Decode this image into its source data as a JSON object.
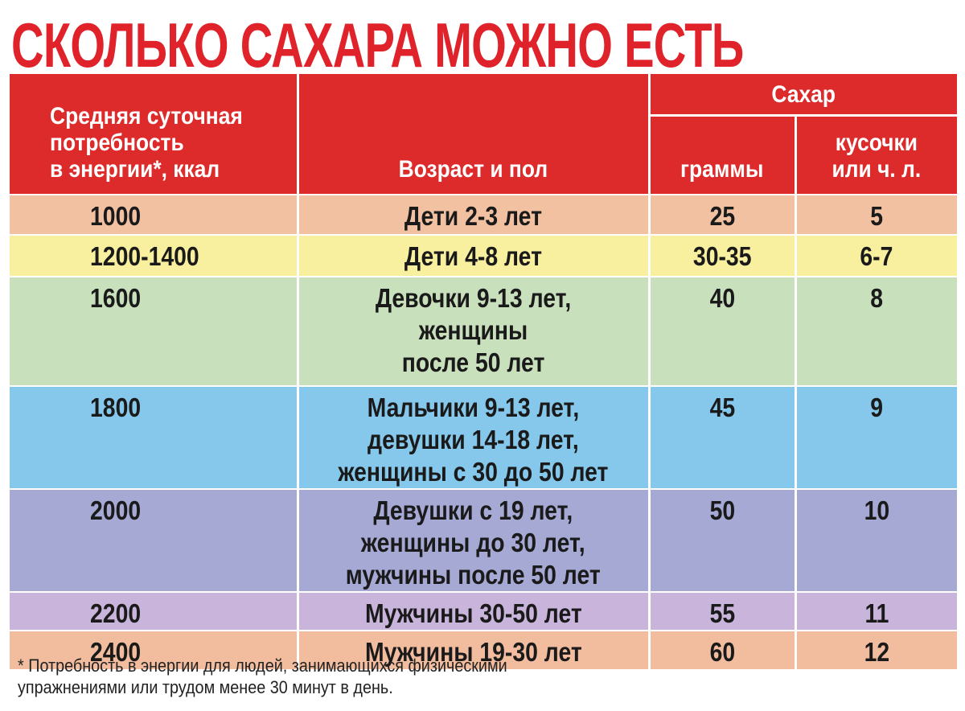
{
  "title": "СКОЛЬКО САХАРА МОЖНО ЕСТЬ",
  "header": {
    "energy": "Средняя суточная\nпотребность\nв энергии*, ккал",
    "age": "Возраст и пол",
    "sugar": "Сахар",
    "grams": "граммы",
    "pieces": "кусочки\nили ч. л."
  },
  "rows": [
    {
      "energy": "1000",
      "age": "Дети 2-3 лет",
      "grams": "25",
      "pieces": "5",
      "color": "#f2c1a2"
    },
    {
      "energy": "1200-1400",
      "age": "Дети 4-8 лет",
      "grams": "30-35",
      "pieces": "6-7",
      "color": "#f8ef9f"
    },
    {
      "energy": "1600",
      "age": "Девочки 9-13 лет,\nженщины\nпосле 50 лет",
      "grams": "40",
      "pieces": "8",
      "color": "#c9e0bd"
    },
    {
      "energy": "1800",
      "age": "Мальчики 9-13 лет,\nдевушки 14-18 лет,\nженщины с 30 до 50 лет",
      "grams": "45",
      "pieces": "9",
      "color": "#86c8eb"
    },
    {
      "energy": "2000",
      "age": "Девушки с 19 лет,\nженщины до 30 лет,\nмужчины после 50 лет",
      "grams": "50",
      "pieces": "10",
      "color": "#a5a9d4"
    },
    {
      "energy": "2200",
      "age": "Мужчины 30-50 лет",
      "grams": "55",
      "pieces": "11",
      "color": "#c9b4dc"
    },
    {
      "energy": "2400",
      "age": "Мужчины 19-30 лет",
      "grams": "60",
      "pieces": "12",
      "color": "#f2bc9e"
    }
  ],
  "footnote": "* Потребность в энергии для людей, занимающихся физическими\nупражнениями или трудом менее 30 минут в день."
}
